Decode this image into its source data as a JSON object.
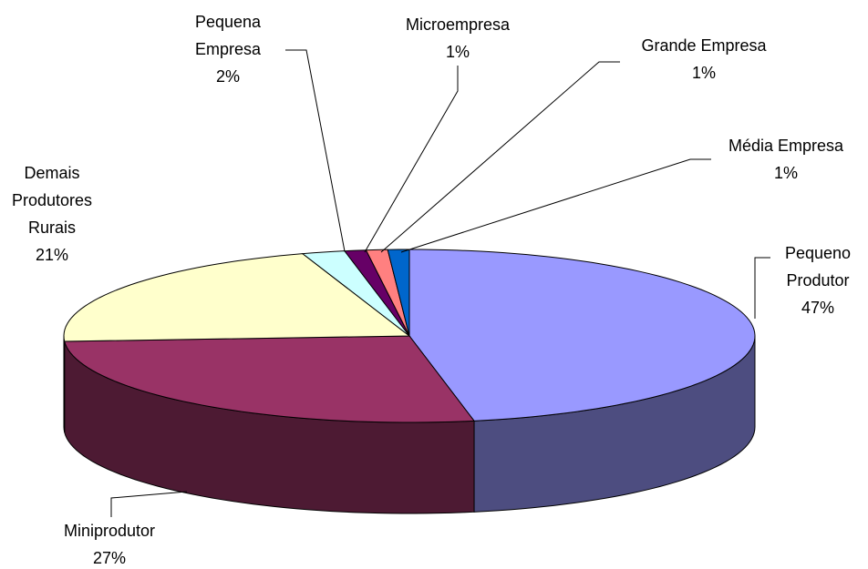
{
  "chart_data": {
    "type": "pie3d",
    "categories": [
      "Pequeno Produtor",
      "Miniprodutor",
      "Demais Produtores Rurais",
      "Pequena Empresa",
      "Microempresa",
      "Grande Empresa",
      "Média Empresa"
    ],
    "values": [
      47,
      27,
      21,
      2,
      1,
      1,
      1
    ],
    "value_labels": [
      "47%",
      "27%",
      "21%",
      "2%",
      "1%",
      "1%",
      "1%"
    ],
    "colors": [
      "#9999ff",
      "#993366",
      "#ffffcc",
      "#ccffff",
      "#660066",
      "#ff8080",
      "#0066cc"
    ]
  }
}
